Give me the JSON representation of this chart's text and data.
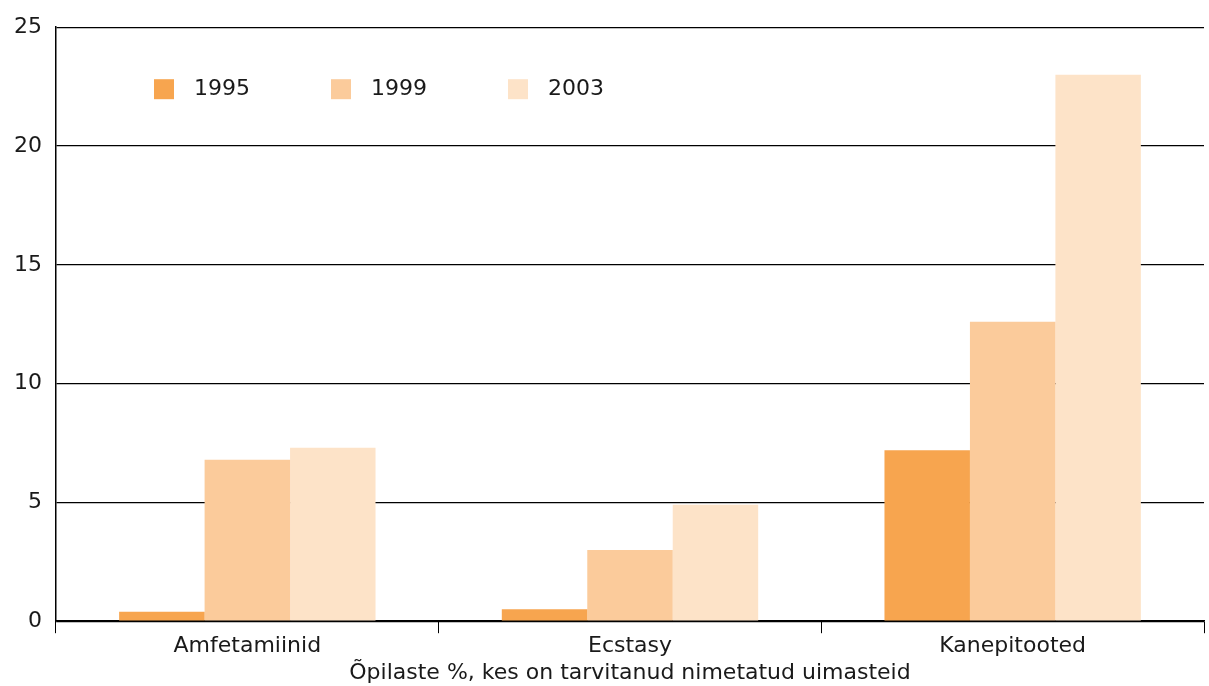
{
  "chart_data": {
    "type": "bar",
    "xlabel": "Õpilaste %, kes on tarvitanud nimetatud uimasteid",
    "categories": [
      "Amfetamiinid",
      "Ecstasy",
      "Kanepitooted"
    ],
    "series": [
      {
        "name": "1995",
        "color": "#f7a54f",
        "values": [
          0.4,
          0.5,
          7.2
        ]
      },
      {
        "name": "1999",
        "color": "#fbcb9b",
        "values": [
          6.8,
          3.0,
          12.6
        ]
      },
      {
        "name": "2003",
        "color": "#fde3c8",
        "values": [
          7.3,
          4.9,
          23.0
        ]
      }
    ],
    "ylim": [
      0,
      25
    ],
    "yticks": [
      0,
      5,
      10,
      15,
      20,
      25
    ],
    "grid": "y",
    "legend": "top left"
  }
}
